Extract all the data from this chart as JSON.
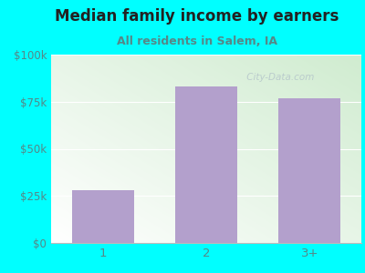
{
  "title": "Median family income by earners",
  "subtitle": "All residents in Salem, IA",
  "categories": [
    "1",
    "2",
    "3+"
  ],
  "values": [
    28000,
    83000,
    77000
  ],
  "bar_color": "#b3a0cc",
  "background_color": "#00ffff",
  "title_color": "#222222",
  "subtitle_color": "#558888",
  "axis_label_color": "#558888",
  "ylim": [
    0,
    100000
  ],
  "yticks": [
    0,
    25000,
    50000,
    75000,
    100000
  ],
  "ytick_labels": [
    "$0",
    "$25k",
    "$50k",
    "$75k",
    "$100k"
  ],
  "watermark": " City-Data.com",
  "title_fontsize": 12,
  "subtitle_fontsize": 9
}
